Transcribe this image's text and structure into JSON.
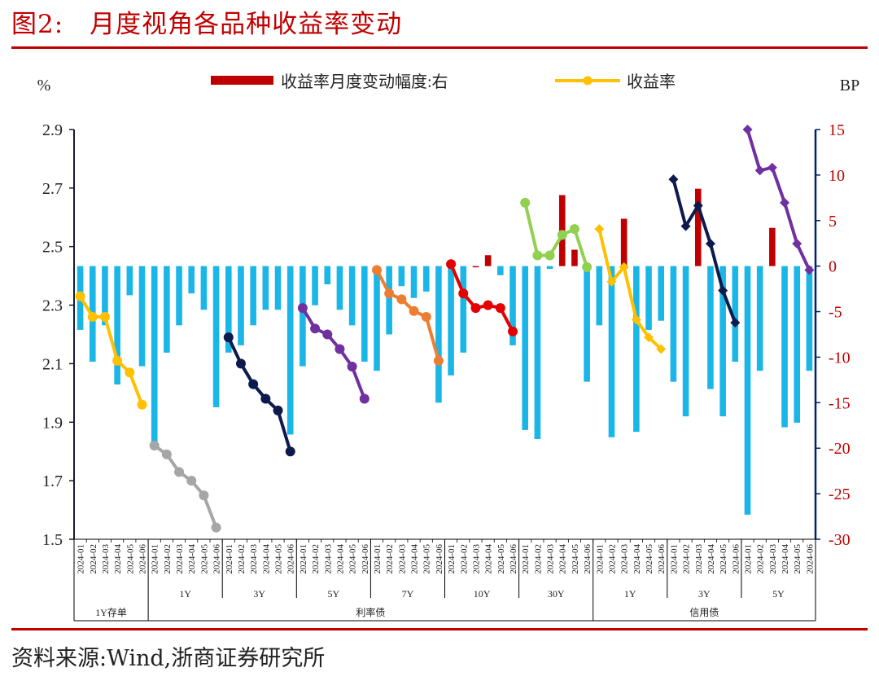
{
  "figure_title": "图2:　月度视角各品种收益率变动",
  "source_note": "资料来源:Wind,浙商证券研究所",
  "colors": {
    "title": "#c00000",
    "bar_positive": "#c00000",
    "bar_negative": "#1ab6e8",
    "left_axis": "#1a1a2e",
    "right_axis": "#00206a",
    "right_tick_labels": "#c00000"
  },
  "chart_data": {
    "type": "bar",
    "left_axis_unit": "%",
    "right_axis_unit": "BP",
    "y_left_lim": [
      1.5,
      2.9
    ],
    "y_left_ticks": [
      "1.5",
      "1.7",
      "1.9",
      "2.1",
      "2.3",
      "2.5",
      "2.7",
      "2.9"
    ],
    "y_right_lim": [
      -30,
      15
    ],
    "y_right_ticks": [
      "-30",
      "-25",
      "-20",
      "-15",
      "-10",
      "-5",
      "0",
      "5",
      "10",
      "15"
    ],
    "legend": {
      "position": "top-center",
      "items": [
        {
          "label": "收益率月度变动幅度:右",
          "kind": "bar",
          "color": "#c00000"
        },
        {
          "label": "收益率",
          "kind": "line",
          "color": "#ffc000"
        }
      ]
    },
    "months": [
      "2024-01",
      "2024-02",
      "2024-03",
      "2024-04",
      "2024-05",
      "2024-06"
    ],
    "group_top_labels": [
      "利率债",
      "信用债"
    ],
    "groups": [
      {
        "label": "1Y存单",
        "top": "",
        "color": "#ffc000",
        "marker": "circle",
        "yields": [
          2.33,
          2.26,
          2.26,
          2.11,
          2.07,
          1.96
        ],
        "changes_bp": [
          -7,
          -10.5,
          -6.5,
          -13,
          -3.2,
          -11
        ]
      },
      {
        "label": "1Y",
        "top": "利率债",
        "color": "#a6a6a6",
        "marker": "circle",
        "yields": [
          1.82,
          1.79,
          1.73,
          1.7,
          1.65,
          1.54
        ],
        "changes_bp": [
          -20,
          -9.5,
          -6.5,
          -3,
          -4.8,
          -15.5
        ]
      },
      {
        "label": "3Y",
        "top": "利率债",
        "color": "#0d1a4e",
        "marker": "circle",
        "yields": [
          2.19,
          2.1,
          2.03,
          1.98,
          1.94,
          1.8
        ],
        "changes_bp": [
          -9.5,
          -8.7,
          -6.5,
          -4.8,
          -4.8,
          -18.5
        ]
      },
      {
        "label": "5Y",
        "top": "利率债",
        "color": "#7030a0",
        "marker": "circle",
        "yields": [
          2.29,
          2.22,
          2.2,
          2.15,
          2.09,
          1.98
        ],
        "changes_bp": [
          -11,
          -4.3,
          -2,
          -4.8,
          -6.5,
          -10.5
        ]
      },
      {
        "label": "7Y",
        "top": "利率债",
        "color": "#ed7d31",
        "marker": "circle",
        "yields": [
          2.42,
          2.34,
          2.32,
          2.28,
          2.26,
          2.11
        ],
        "changes_bp": [
          -11.5,
          -7.5,
          -2.2,
          -3.5,
          -2.8,
          -15
        ]
      },
      {
        "label": "10Y",
        "top": "利率债",
        "color": "#e30000",
        "marker": "circle",
        "yields": [
          2.44,
          2.34,
          2.29,
          2.3,
          2.29,
          2.21
        ],
        "changes_bp": [
          -12,
          -9.5,
          0,
          1.2,
          -1,
          -8.7
        ]
      },
      {
        "label": "30Y",
        "top": "利率债",
        "color": "#92d050",
        "marker": "circle",
        "yields": [
          2.65,
          2.47,
          2.47,
          2.54,
          2.56,
          2.43
        ],
        "changes_bp": [
          -18,
          -19,
          -0.3,
          7.8,
          1.8,
          -12.7
        ]
      },
      {
        "label": "1Y",
        "top": "信用债",
        "color": "#ffc000",
        "marker": "diamond",
        "yields": [
          2.56,
          2.38,
          2.43,
          2.25,
          2.19,
          2.15
        ],
        "changes_bp": [
          -6.5,
          -18.8,
          5.2,
          -18.2,
          -7,
          -6
        ]
      },
      {
        "label": "3Y",
        "top": "信用债",
        "color": "#0d1a4e",
        "marker": "diamond",
        "yields": [
          2.73,
          2.57,
          2.64,
          2.51,
          2.35,
          2.24
        ],
        "changes_bp": [
          -12.7,
          -16.5,
          8.5,
          -13.5,
          -16.5,
          -10.5
        ]
      },
      {
        "label": "5Y",
        "top": "信用债",
        "color": "#7030a0",
        "marker": "diamond",
        "yields": [
          2.9,
          2.76,
          2.77,
          2.65,
          2.51,
          2.42
        ],
        "changes_bp": [
          -27.3,
          -11.5,
          4.2,
          -17.7,
          -17.2,
          -11.5
        ]
      }
    ]
  }
}
